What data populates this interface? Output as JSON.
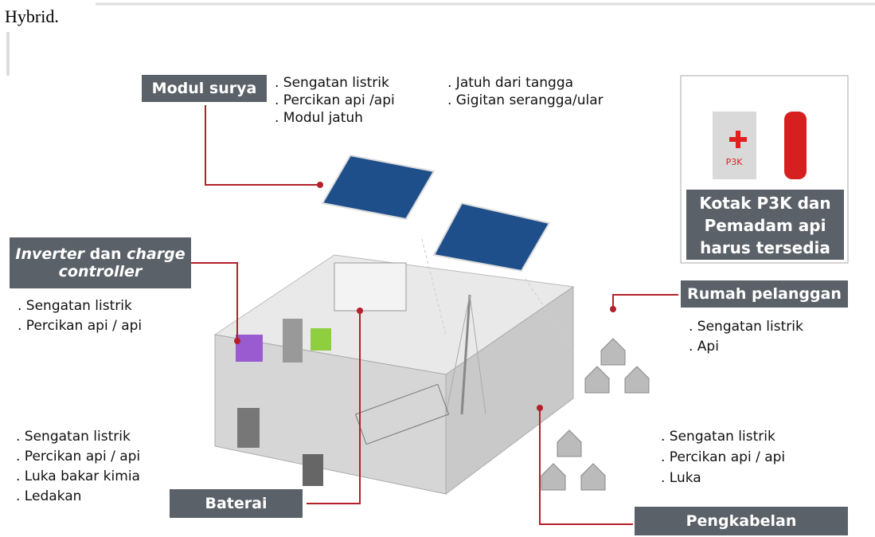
{
  "header": {
    "text": "Hybrid."
  },
  "diagram": {
    "modul_surya": {
      "title": "Modul surya",
      "risks": [
        ". Sengatan listrik",
        ". Percikan api /api",
        ". Modul jatuh",
        ". Jatuh dari tangga",
        ". Gigitan serangga/ular"
      ]
    },
    "inverter": {
      "title_parts": [
        "Inverter",
        " dan ",
        "charge",
        "controller"
      ],
      "risks": [
        ". Sengatan listrik",
        ". Percikan api / api"
      ]
    },
    "baterai": {
      "title": "Baterai",
      "risks": [
        ". Sengatan listrik",
        ". Percikan api / api",
        ". Luka bakar kimia",
        ". Ledakan"
      ]
    },
    "rumah": {
      "title": "Rumah pelanggan",
      "risks": [
        ". Sengatan listrik",
        ". Api"
      ]
    },
    "pengkabelan": {
      "title": "Pengkabelan",
      "risks": [
        ". Sengatan listrik",
        ". Percikan api / api",
        ". Luka"
      ]
    },
    "safety": {
      "kit_label": "P3K",
      "lines": [
        "Kotak P3K dan",
        "Pemadam api",
        "harus tersedia"
      ]
    }
  }
}
